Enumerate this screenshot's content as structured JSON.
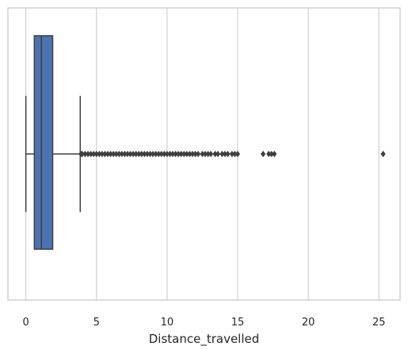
{
  "chart_data": {
    "type": "box",
    "orientation": "horizontal",
    "xlabel": "Distance_travelled",
    "xlim": [
      -1.27,
      26.5
    ],
    "xticks": [
      0,
      5,
      10,
      15,
      20,
      25
    ],
    "xtick_labels": [
      "0",
      "5",
      "10",
      "15",
      "20",
      "25"
    ],
    "grid": true,
    "box": {
      "whisker_low": 0,
      "q1": 0.6,
      "median": 1.1,
      "q3": 1.9,
      "whisker_high": 3.85
    },
    "outliers": [
      3.9,
      4.0,
      4.2,
      4.4,
      4.6,
      4.8,
      5.0,
      5.2,
      5.4,
      5.6,
      5.8,
      6.0,
      6.2,
      6.4,
      6.6,
      6.8,
      7.0,
      7.2,
      7.4,
      7.6,
      7.8,
      8.0,
      8.2,
      8.4,
      8.6,
      8.8,
      9.0,
      9.2,
      9.4,
      9.6,
      9.8,
      10.0,
      10.2,
      10.4,
      10.6,
      10.8,
      11.0,
      11.2,
      11.4,
      11.6,
      11.8,
      12.0,
      12.2,
      12.5,
      12.7,
      12.9,
      13.1,
      13.4,
      13.6,
      13.9,
      14.1,
      14.3,
      14.6,
      14.8,
      15.0,
      16.8,
      17.2,
      17.4,
      17.6,
      25.3
    ],
    "colors": {
      "box_fill": "#4c72b0",
      "lines": "#3f3f3f",
      "grid": "#d0d0d0",
      "frame": "#c8c8c8"
    }
  }
}
